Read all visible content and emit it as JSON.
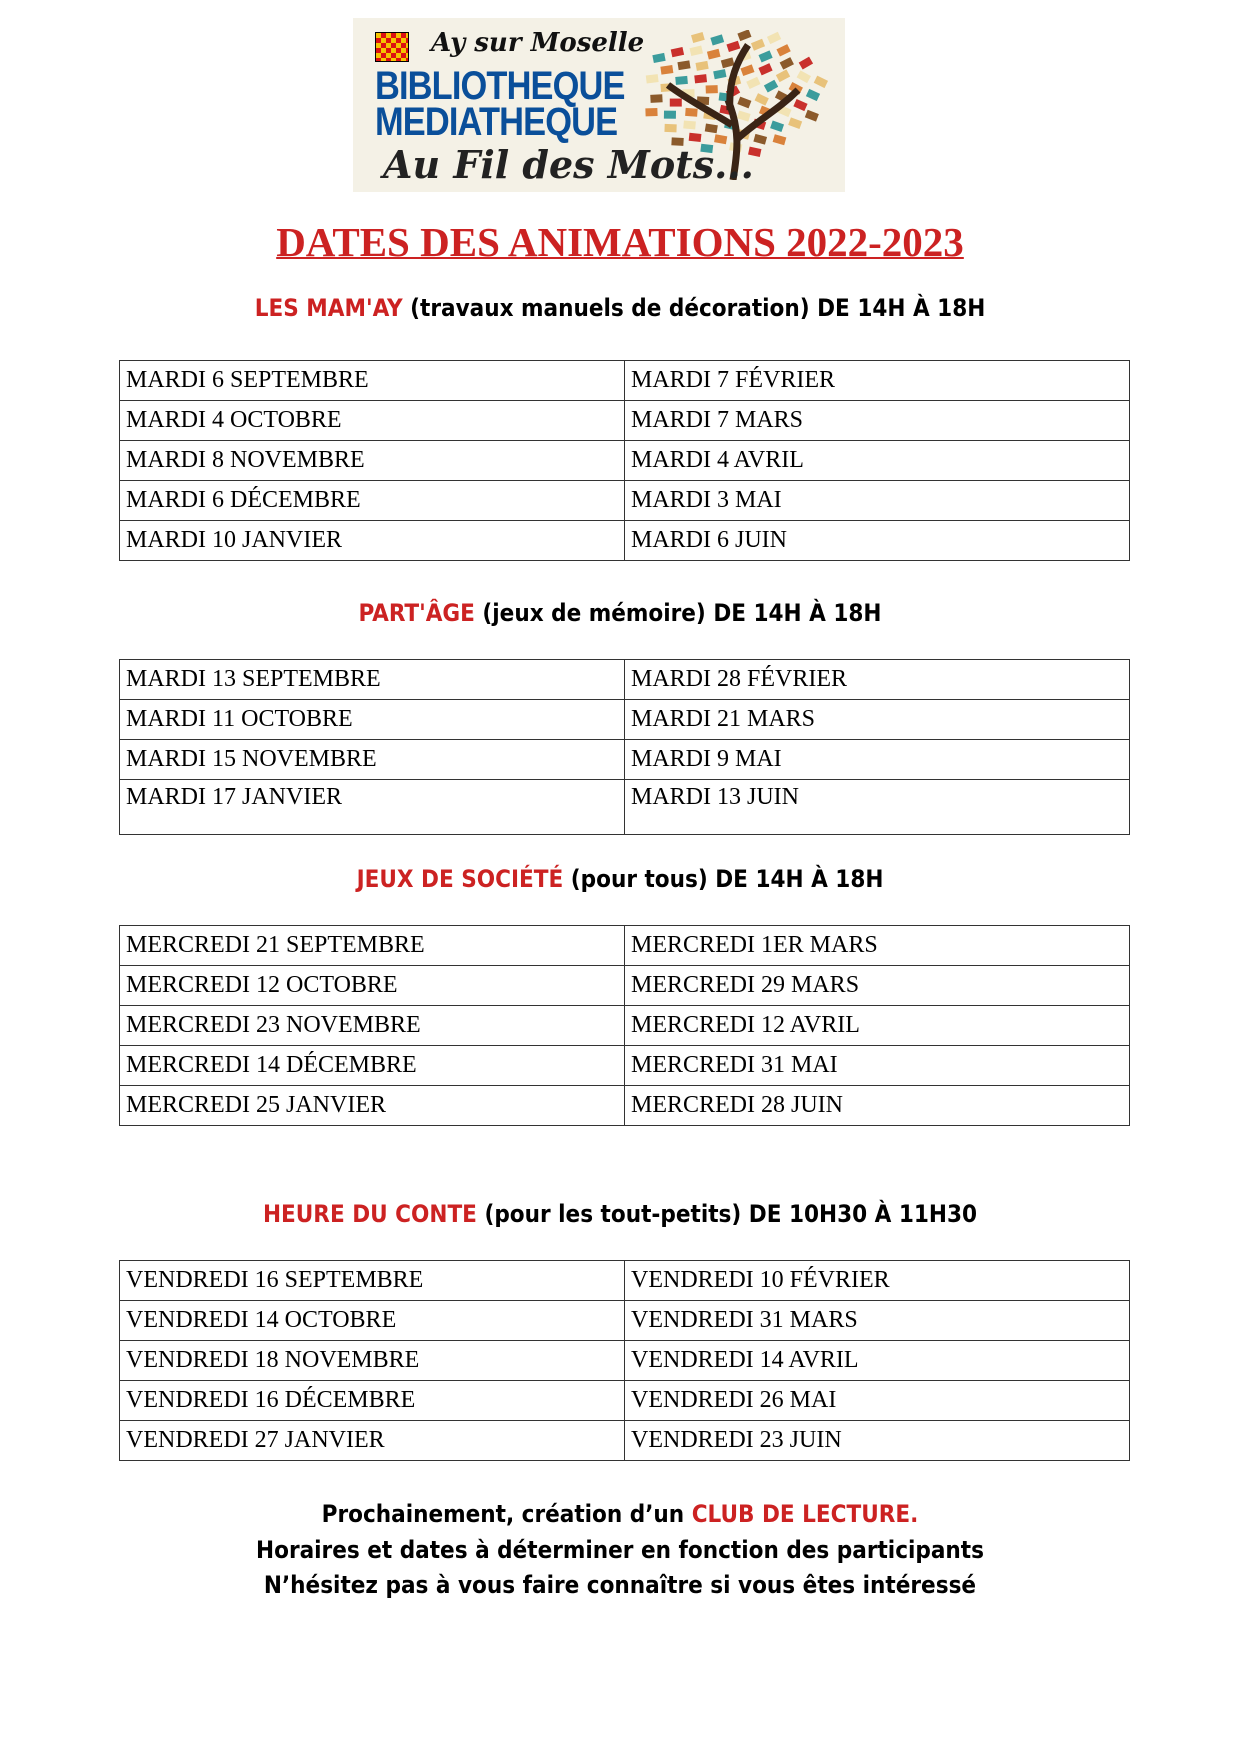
{
  "logo": {
    "town": "Ay sur Moselle",
    "line1": "BIBLIOTHEQUE",
    "line2": "MEDIATHEQUE",
    "slogan": "Au Fil des Mots..."
  },
  "title": "DATES DES ANIMATIONS  2022-2023",
  "colors": {
    "accent": "#cc2222",
    "logo_blue": "#0a4f9a"
  },
  "sections": [
    {
      "name": "LES MAM'AY",
      "detail": " (travaux manuels de décoration) DE 14H À 18H",
      "rows": [
        [
          "MARDI 6 SEPTEMBRE",
          "MARDI 7 FÉVRIER"
        ],
        [
          "MARDI 4 OCTOBRE",
          "MARDI 7 MARS"
        ],
        [
          "MARDI 8 NOVEMBRE",
          "MARDI 4 AVRIL"
        ],
        [
          "MARDI 6 DÉCEMBRE",
          "MARDI 3 MAI"
        ],
        [
          "MARDI 10 JANVIER",
          "MARDI 6 JUIN"
        ]
      ]
    },
    {
      "name": "PART'ÂGE",
      "detail": " (jeux de mémoire) DE 14H À 18H",
      "rows": [
        [
          "MARDI 13 SEPTEMBRE",
          "MARDI 28 FÉVRIER"
        ],
        [
          "MARDI 11 OCTOBRE",
          "MARDI 21 MARS"
        ],
        [
          "MARDI 15 NOVEMBRE",
          "MARDI 9 MAI"
        ],
        [
          "MARDI 17 JANVIER",
          "MARDI 13 JUIN"
        ]
      ]
    },
    {
      "name": "JEUX DE SOCIÉTÉ",
      "detail": " (pour tous) DE 14H À 18H",
      "rows": [
        [
          "MERCREDI 21 SEPTEMBRE",
          "MERCREDI  1ER MARS"
        ],
        [
          "MERCREDI 12 OCTOBRE",
          "MERCREDI 29 MARS"
        ],
        [
          "MERCREDI 23 NOVEMBRE",
          "MERCREDI 12 AVRIL"
        ],
        [
          "MERCREDI 14 DÉCEMBRE",
          "MERCREDI 31 MAI"
        ],
        [
          "MERCREDI 25 JANVIER",
          "MERCREDI 28 JUIN"
        ]
      ]
    },
    {
      "name": "HEURE DU CONTE",
      "detail": " (pour les tout-petits) DE 10H30 À 11H30",
      "rows": [
        [
          "VENDREDI 16 SEPTEMBRE",
          "VENDREDI 10 FÉVRIER"
        ],
        [
          "VENDREDI 14 OCTOBRE",
          "VENDREDI 31 MARS"
        ],
        [
          "VENDREDI 18 NOVEMBRE",
          "VENDREDI 14 AVRIL"
        ],
        [
          "VENDREDI 16 DÉCEMBRE",
          "VENDREDI 26 MAI"
        ],
        [
          "VENDREDI 27 JANVIER",
          "VENDREDI 23 JUIN"
        ]
      ]
    }
  ],
  "footer": {
    "line1_prefix": "Prochainement, création d’un ",
    "line1_highlight": "CLUB DE LECTURE.",
    "line2": "Horaires et dates à déterminer en fonction des participants",
    "line3": " N’hésitez pas à vous faire connaître si vous êtes intéressé"
  }
}
